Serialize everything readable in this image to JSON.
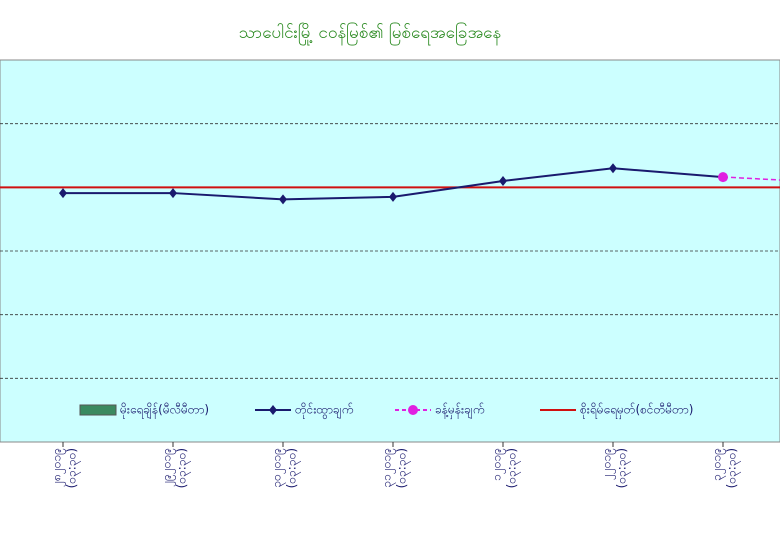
{
  "chart_data": {
    "type": "line",
    "title": "သာပေါင်းမြို့ ငဝန်မြစ်၏ မြစ်ရေအခြေအနေ",
    "categories": [
      "၂၈၂၀၁၉",
      "၂၉၂၀၁၉",
      "၃၀၂၀၁၉",
      "၃၁၂၀၁၉",
      "၁၂၀၁၉",
      "၂၂၀၁၉",
      "၃၂၀၁၉"
    ],
    "times": [
      "(၀၃:၃၀)",
      "(၀၃:၃၀)",
      "(၀၃:၃၀)",
      "(၀၃:၃၀)",
      "(၀၃:၃၀)",
      "(၀၃:၃၀)",
      "(၀၃:၃၀)"
    ],
    "series": [
      {
        "name": "မိုးရေချိန်(မီလီမီတာ)",
        "color": "#3a8a60",
        "values": [
          null,
          null,
          null,
          null,
          null,
          null,
          null
        ]
      },
      {
        "name": "တိုင်းထွာချက်",
        "color": "#1a1a6e",
        "values": [
          3.91,
          3.91,
          3.81,
          3.85,
          4.1,
          4.3,
          4.16
        ]
      },
      {
        "name": "ခန့်မှန်းချက်",
        "color": "#e020e0",
        "values": [
          null,
          null,
          null,
          null,
          null,
          null,
          4.16
        ]
      }
    ],
    "danger": {
      "name": "စိုးရိမ်ရေမှတ်(စင်တီမီတာ)",
      "color": "#d01010",
      "value": 4
    },
    "ylim": [
      0,
      6
    ],
    "gridlines": [
      1,
      2,
      3,
      5
    ],
    "grid": true
  }
}
